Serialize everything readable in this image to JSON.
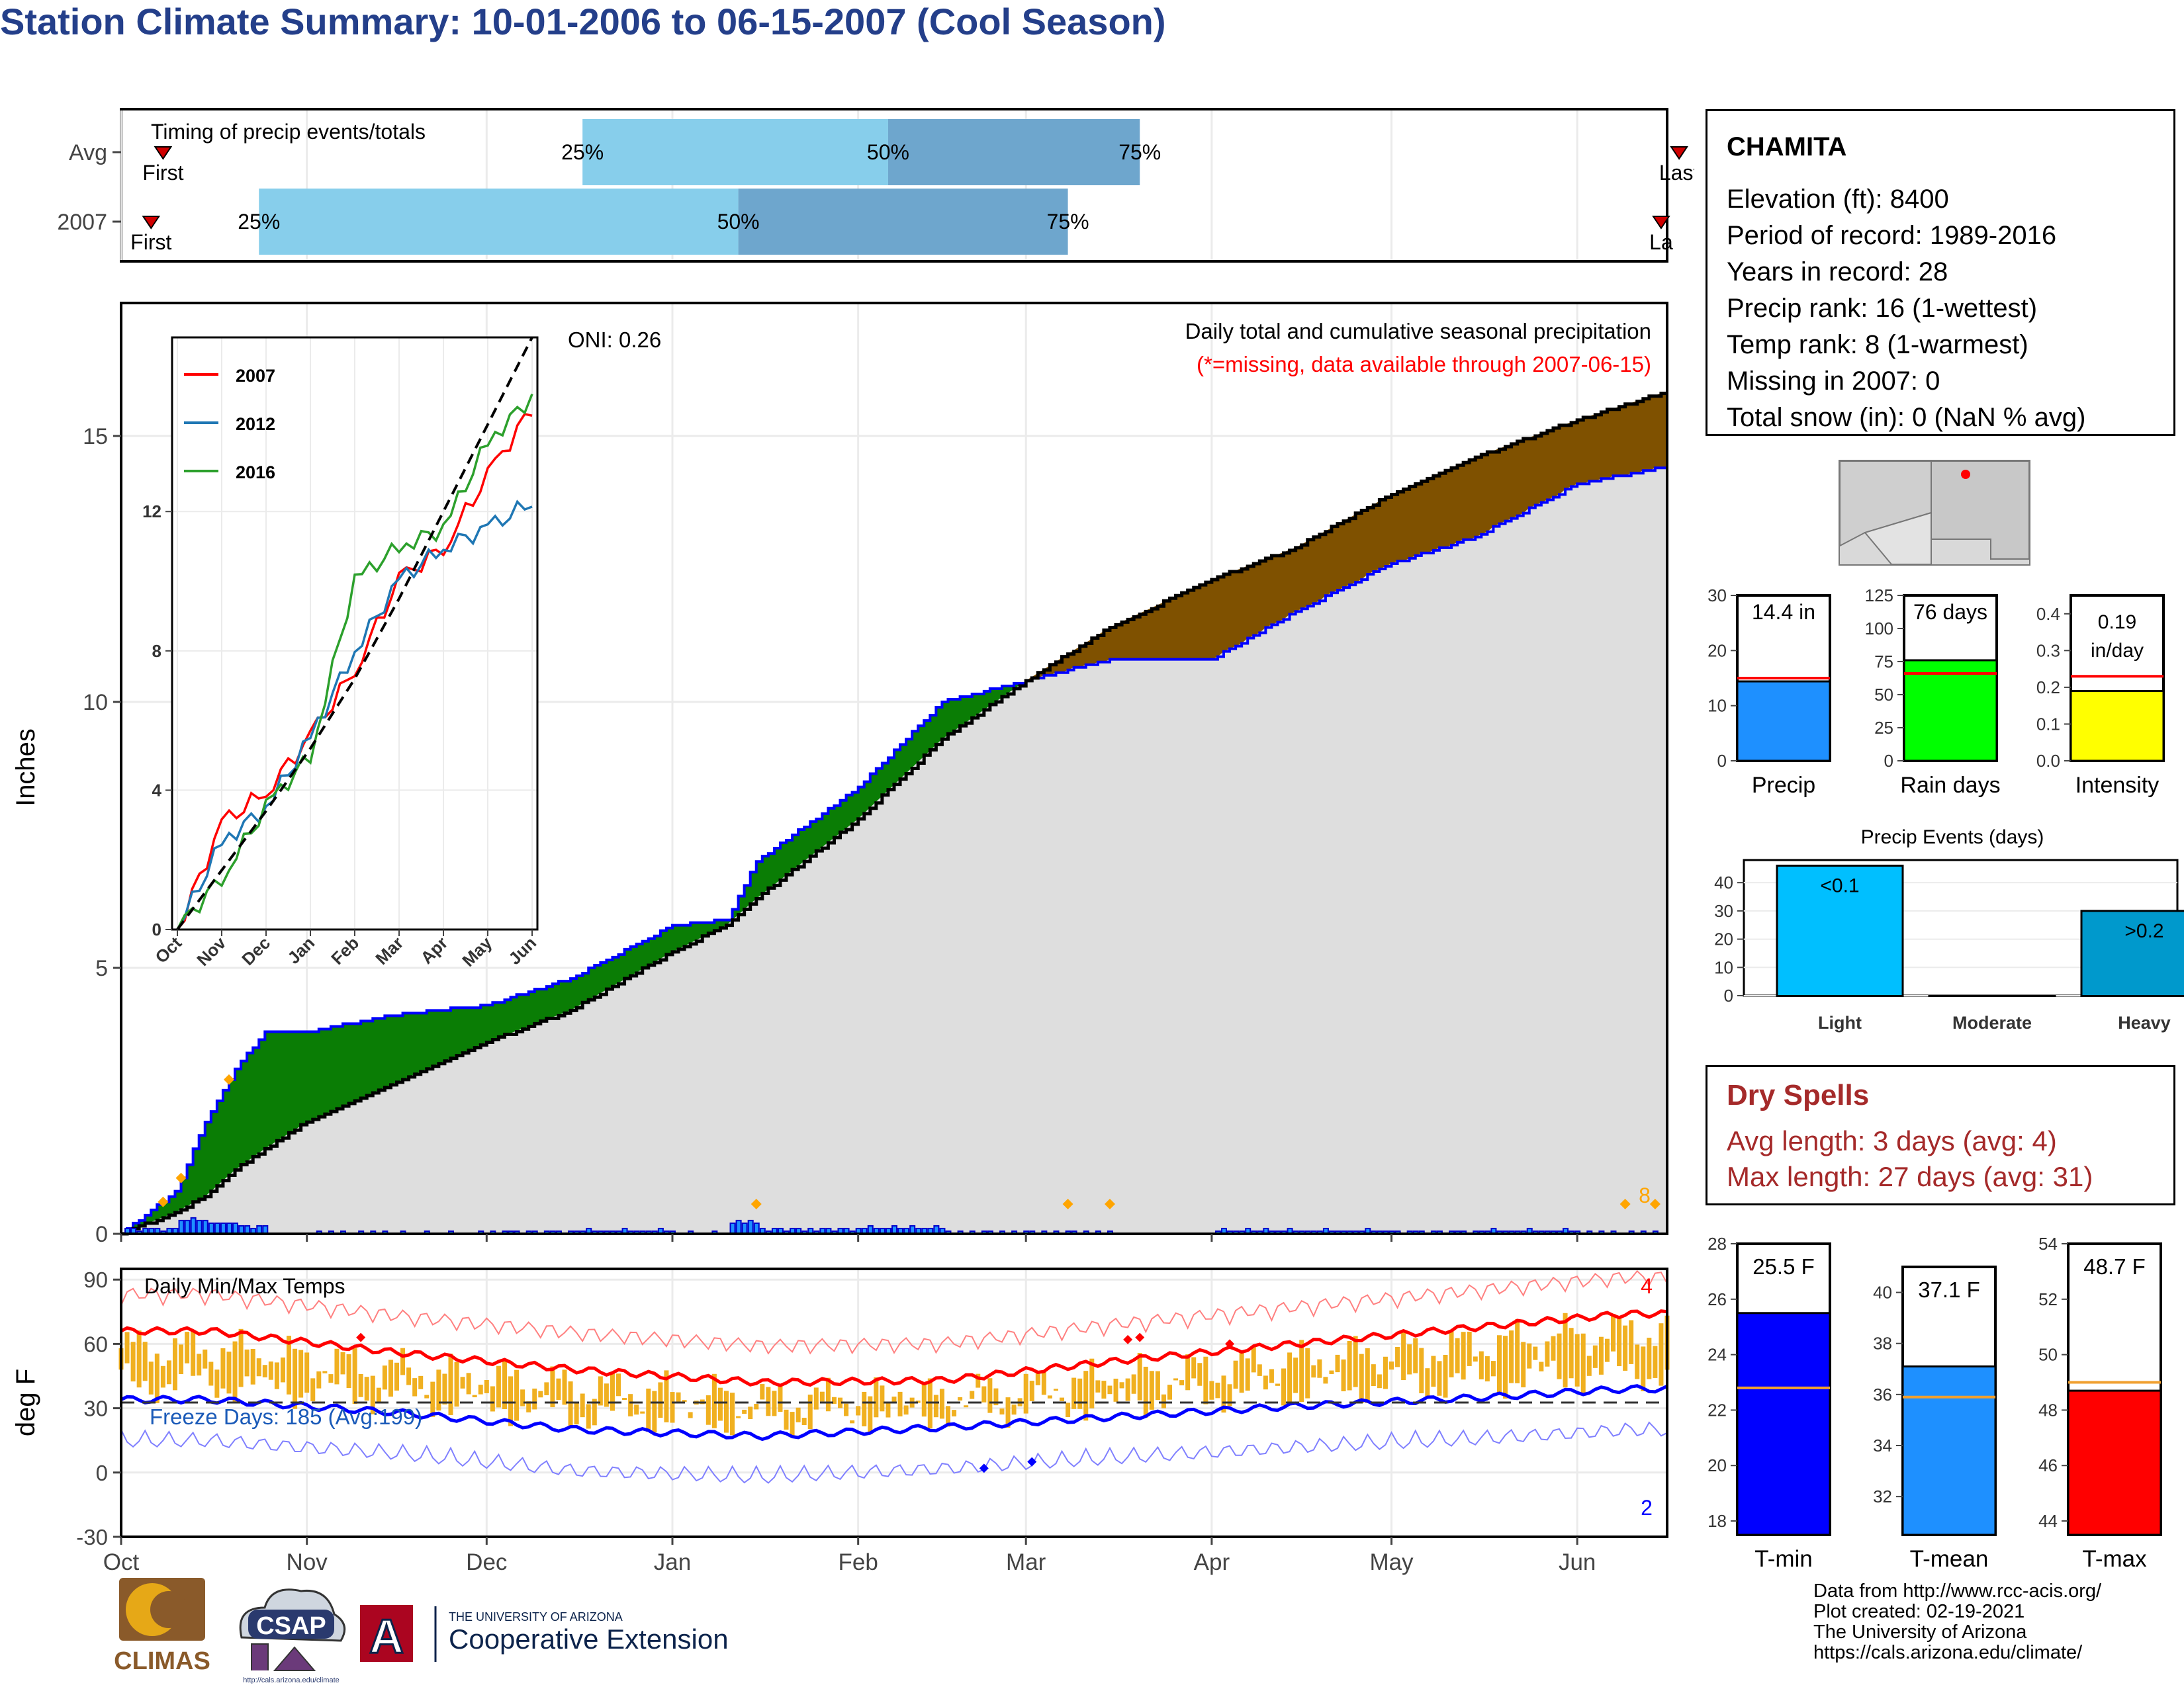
{
  "title": "Station Climate Summary: 10-01-2006 to 06-15-2007 (Cool Season)",
  "timing": {
    "label": "Timing of precip events/totals",
    "rows": [
      {
        "name": "Avg",
        "first_day": 7,
        "q25": 77,
        "q50": 128,
        "q75": 170,
        "last_day": 260,
        "first_label": "First",
        "last_label": "Last"
      },
      {
        "name": "2007",
        "first_day": 5,
        "q25": 23,
        "q50": 103,
        "q75": 158,
        "last_day": 257,
        "first_label": "First",
        "last_label": "La"
      }
    ],
    "pct_labels": [
      "25%",
      "50%",
      "75%"
    ]
  },
  "main": {
    "ylabel": "Inches",
    "title_line1": "Daily total and cumulative seasonal precipitation",
    "title_line2": "(*=missing, data available through 2007-06-15)",
    "oni": "ONI: 0.26",
    "missing_count": "8",
    "y_ticks": [
      "0",
      "5",
      "10",
      "15"
    ]
  },
  "inset": {
    "legend": [
      "2007",
      "2012",
      "2016"
    ],
    "y_ticks": [
      "0",
      "4",
      "8",
      "12"
    ],
    "x_ticks": [
      "Oct",
      "Nov",
      "Dec",
      "Jan",
      "Feb",
      "Mar",
      "Apr",
      "May",
      "Jun"
    ]
  },
  "temp": {
    "label": "Daily Min/Max Temps",
    "ylabel": "deg F",
    "freeze": "Freeze Days: 185 (Avg:199)",
    "count_hot": "4",
    "count_cold": "2",
    "y_ticks": [
      "90",
      "60",
      "30",
      "0",
      "-30"
    ]
  },
  "x_months": [
    "Oct",
    "Nov",
    "Dec",
    "Jan",
    "Feb",
    "Mar",
    "Apr",
    "May",
    "Jun"
  ],
  "station": {
    "name": "CHAMITA",
    "lines": [
      "Elevation (ft): 8400",
      "Period of record: 1989-2016",
      "Years in record: 28",
      "Precip rank: 16 (1-wettest)",
      "Temp rank: 8 (1-warmest)",
      "Missing in 2007: 0",
      "Total snow (in): 0 (NaN % avg)"
    ]
  },
  "mini_bars": [
    {
      "label": "Precip",
      "value_text": "14.4 in",
      "value": 14.4,
      "avg": 15,
      "ymax": 30,
      "ticks": [
        "0",
        "10",
        "20",
        "30"
      ],
      "color": "#1e90ff"
    },
    {
      "label": "Rain days",
      "value_text": "76 days",
      "value": 76,
      "avg": 66,
      "ymax": 125,
      "ticks": [
        "0",
        "25",
        "50",
        "75",
        "100",
        "125"
      ],
      "color": "#00ff00"
    },
    {
      "label": "Intensity",
      "value_text": "0.19 in/day",
      "value_line1": "0.19",
      "value_line2": "in/day",
      "value": 0.19,
      "avg": 0.23,
      "ymax": 0.45,
      "ticks": [
        "0.0",
        "0.1",
        "0.2",
        "0.3",
        "0.4"
      ],
      "color": "#ffff00"
    }
  ],
  "events": {
    "title": "Precip Events (days)",
    "categories": [
      "Light",
      "Moderate",
      "Heavy"
    ],
    "values": [
      46,
      0,
      30
    ],
    "labels": [
      "<0.1",
      "",
      ">0.2"
    ],
    "ticks": [
      "0",
      "10",
      "20",
      "30",
      "40"
    ],
    "colors": [
      "#00bfff",
      "#1a6fb0",
      "#0099cc"
    ]
  },
  "dry": {
    "title": "Dry Spells",
    "avg": "Avg length: 3 days (avg: 4)",
    "max": "Max length: 27 days (avg: 31)",
    "color": "#a52a2a"
  },
  "temp_bars": [
    {
      "label": "T-min",
      "value_text": "25.5 F",
      "value": 25.5,
      "avg": 22.8,
      "ymin": 17.5,
      "ymax": 28,
      "ticks": [
        "18",
        "20",
        "22",
        "24",
        "26",
        "28"
      ],
      "color": "#0000ff"
    },
    {
      "label": "T-mean",
      "value_text": "37.1 F",
      "value": 37.1,
      "avg": 35.9,
      "ymin": 30.5,
      "ymax": 41,
      "ticks": [
        "32",
        "34",
        "36",
        "38",
        "40"
      ],
      "color": "#1e90ff"
    },
    {
      "label": "T-max",
      "value_text": "48.7 F",
      "value": 48.7,
      "avg": 49,
      "ymin": 43.5,
      "ymax": 54,
      "ticks": [
        "44",
        "46",
        "48",
        "50",
        "52",
        "54"
      ],
      "color": "#ff0000"
    }
  ],
  "footer": {
    "lines": [
      "Data from http://www.rcc-acis.org/",
      "Plot created: 02-19-2021",
      "The University of Arizona",
      "https://cals.arizona.edu/climate/"
    ],
    "logo_climas": "CLIMAS",
    "logo_csap": "CSAP",
    "logo_csap_url": "http://cals.arizona.edu/climate",
    "ua_line1": "THE UNIVERSITY OF ARIZONA",
    "ua_line2": "Cooperative Extension",
    "ua_letter": "A"
  },
  "chart_data": [
    {
      "type": "area",
      "title": "Daily total and cumulative seasonal precipitation",
      "ylabel": "Inches",
      "ylim": [
        0,
        17.5
      ],
      "x": [
        "10-01",
        "10-10",
        "10-15",
        "10-20",
        "10-25",
        "11-01",
        "11-15",
        "12-01",
        "12-15",
        "01-01",
        "01-10",
        "01-15",
        "02-01",
        "02-15",
        "03-01",
        "03-15",
        "04-01",
        "04-15",
        "05-01",
        "05-15",
        "06-01",
        "06-15"
      ],
      "series": [
        {
          "name": "2007",
          "values": [
            0.0,
            0.8,
            2.1,
            3.1,
            3.8,
            3.8,
            4.1,
            4.3,
            4.8,
            5.8,
            5.9,
            7.0,
            8.4,
            10.0,
            10.4,
            10.8,
            10.8,
            11.7,
            12.6,
            13.1,
            14.1,
            14.4
          ]
        },
        {
          "values": [
            0.0,
            0.4,
            0.7,
            1.2,
            1.6,
            2.1,
            2.8,
            3.6,
            4.2,
            5.3,
            5.8,
            6.3,
            7.8,
            9.3,
            10.4,
            11.4,
            12.3,
            12.9,
            13.9,
            14.6,
            15.3,
            15.8
          ]
        }
      ]
    },
    {
      "type": "line",
      "ylim": [
        0,
        17
      ],
      "categories": [
        "Oct",
        "Nov",
        "Dec",
        "Jan",
        "Feb",
        "Mar",
        "Apr",
        "May",
        "Jun"
      ],
      "series": [
        {
          "name": "2007",
          "values": [
            0,
            3,
            4,
            5.5,
            7.5,
            10,
            11,
            13,
            15
          ]
        },
        {
          "name": "2012",
          "values": [
            0,
            2.5,
            3.5,
            5.5,
            8,
            10,
            11,
            11.5,
            12.3
          ]
        },
        {
          "name": "2016",
          "values": [
            0,
            1.5,
            3.5,
            5,
            10,
            11,
            11.5,
            14,
            15.3
          ]
        },
        {
          "values": [
            0,
            1.7,
            3.4,
            5.2,
            7.2,
            9.5,
            12,
            14.5,
            17
          ]
        }
      ]
    },
    {
      "type": "bar",
      "title": "Daily Min/Max Temps",
      "ylabel": "deg F",
      "ylim": [
        -30,
        95
      ],
      "categories": [
        "Oct",
        "Nov",
        "Dec",
        "Jan",
        "Feb",
        "Mar",
        "Apr",
        "May",
        "Jun"
      ],
      "series": [
        {
          "values": [
            66,
            56,
            48,
            42,
            43,
            52,
            60,
            68,
            74
          ]
        },
        {
          "values": [
            34,
            28,
            20,
            17,
            21,
            26,
            31,
            35,
            39
          ]
        }
      ]
    },
    {
      "type": "bar",
      "title": "Precip Events (days)",
      "categories": [
        "Light",
        "Moderate",
        "Heavy"
      ],
      "values": [
        46,
        0,
        30
      ],
      "ylim": [
        0,
        48
      ]
    }
  ]
}
